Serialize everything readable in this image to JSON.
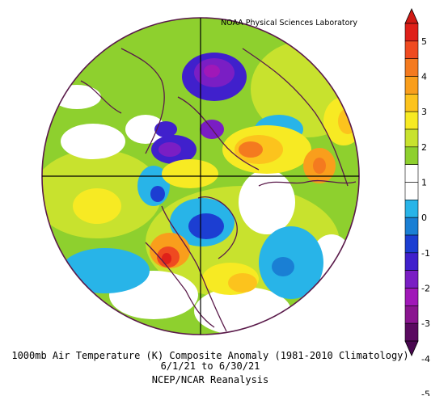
{
  "header": {
    "credit": "NOAA Physical Sciences Laboratory"
  },
  "caption": {
    "line1": "1000mb Air Temperature (K) Composite Anomaly (1981-2010 Climatology)",
    "line2": "6/1/21   to 6/30/21",
    "line3": "NCEP/NCAR Reanalysis"
  },
  "map": {
    "projection": "north-polar-stereographic",
    "variable": "1000mb Air Temperature anomaly",
    "units": "K",
    "coastline_color": "#5a1a4a",
    "background": "#ffffff"
  },
  "colorbar": {
    "tick_labels": [
      "5",
      "4",
      "3",
      "2",
      "1",
      "0",
      "-1",
      "-2",
      "-3",
      "-4",
      "-5"
    ],
    "bins": [
      {
        "color": "#df2019"
      },
      {
        "color": "#ef4a20"
      },
      {
        "color": "#f47a1f"
      },
      {
        "color": "#f99e1c"
      },
      {
        "color": "#fcc31d"
      },
      {
        "color": "#f7ea23"
      },
      {
        "color": "#c8e22e"
      },
      {
        "color": "#8ed02e"
      },
      {
        "color": "#ffffff"
      },
      {
        "color": "#ffffff"
      },
      {
        "color": "#28b4e8"
      },
      {
        "color": "#1a7fd4"
      },
      {
        "color": "#1c3ed2"
      },
      {
        "color": "#4020cc"
      },
      {
        "color": "#7a1ec4"
      },
      {
        "color": "#a018b8"
      },
      {
        "color": "#8a1590"
      },
      {
        "color": "#5a0a60"
      }
    ],
    "top_arrow_color": "#d01a14",
    "bottom_arrow_color": "#4a0850"
  }
}
